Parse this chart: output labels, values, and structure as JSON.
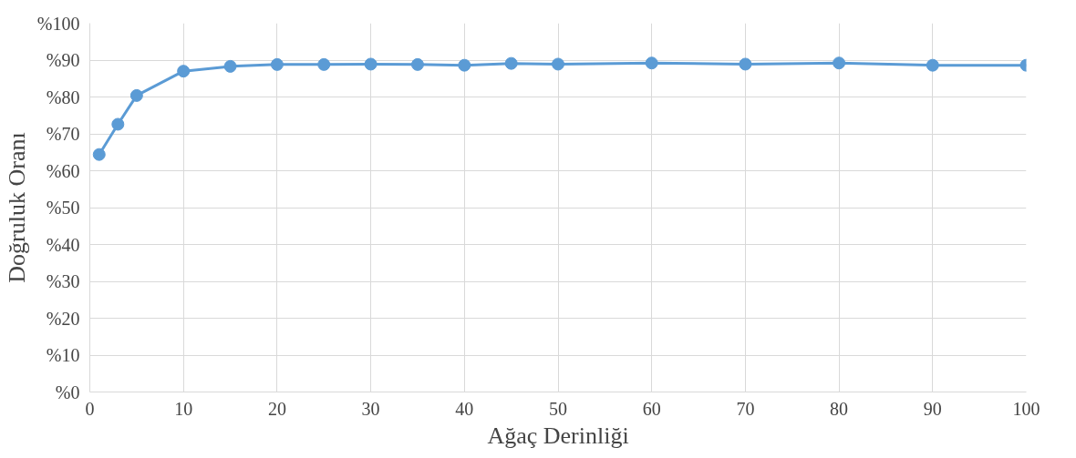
{
  "chart_data": {
    "type": "line",
    "xlabel": "Ağaç Derinliği",
    "ylabel": "Doğruluk Oranı",
    "x": [
      1,
      3,
      5,
      10,
      15,
      20,
      25,
      30,
      35,
      40,
      45,
      50,
      60,
      70,
      80,
      90,
      100
    ],
    "series": [
      {
        "color": "#5b9bd5",
        "values": [
          64.4,
          72.6,
          80.4,
          87.0,
          88.3,
          88.8,
          88.8,
          88.9,
          88.8,
          88.6,
          89.1,
          88.9,
          89.2,
          88.9,
          89.2,
          88.6,
          88.6
        ]
      }
    ],
    "xlim": [
      0,
      100
    ],
    "xticks": [
      0,
      10,
      20,
      30,
      40,
      50,
      60,
      70,
      80,
      90,
      100
    ],
    "ylim": [
      0,
      100
    ],
    "yticks": [
      {
        "value": 0,
        "label": "%0"
      },
      {
        "value": 10,
        "label": "%10"
      },
      {
        "value": 20,
        "label": "%20"
      },
      {
        "value": 30,
        "label": "%30"
      },
      {
        "value": 40,
        "label": "%40"
      },
      {
        "value": 50,
        "label": "%50"
      },
      {
        "value": 60,
        "label": "%60"
      },
      {
        "value": 70,
        "label": "%70"
      },
      {
        "value": 80,
        "label": "%80"
      },
      {
        "value": 90,
        "label": "%90"
      },
      {
        "value": 100,
        "label": "%100"
      }
    ],
    "grid": true,
    "marker": "circle",
    "line_style": "solid"
  }
}
